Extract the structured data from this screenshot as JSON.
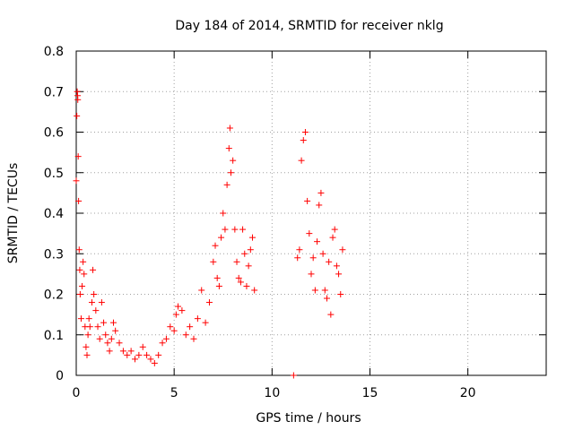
{
  "chart_data": {
    "type": "scatter",
    "title": "Day 184 of 2014, SRMTID for receiver nklg",
    "xlabel": "GPS time / hours",
    "ylabel": "SRMTID / TECUs",
    "xlim": [
      0,
      24
    ],
    "ylim": [
      0,
      0.8
    ],
    "xticks": [
      0,
      5,
      10,
      15,
      20
    ],
    "yticks": [
      0,
      0.1,
      0.2,
      0.3,
      0.4,
      0.5,
      0.6,
      0.7,
      0.8
    ],
    "grid": true,
    "marker": "+",
    "series": [
      {
        "name": "SRMTID",
        "color": "#ff0000",
        "points": [
          [
            0.0,
            0.48
          ],
          [
            0.03,
            0.64
          ],
          [
            0.05,
            0.7
          ],
          [
            0.07,
            0.69
          ],
          [
            0.08,
            0.68
          ],
          [
            0.1,
            0.54
          ],
          [
            0.12,
            0.43
          ],
          [
            0.15,
            0.31
          ],
          [
            0.18,
            0.26
          ],
          [
            0.2,
            0.2
          ],
          [
            0.25,
            0.14
          ],
          [
            0.3,
            0.22
          ],
          [
            0.35,
            0.28
          ],
          [
            0.4,
            0.25
          ],
          [
            0.45,
            0.12
          ],
          [
            0.5,
            0.07
          ],
          [
            0.55,
            0.05
          ],
          [
            0.6,
            0.1
          ],
          [
            0.65,
            0.14
          ],
          [
            0.7,
            0.12
          ],
          [
            0.8,
            0.18
          ],
          [
            0.85,
            0.26
          ],
          [
            0.9,
            0.2
          ],
          [
            1.0,
            0.16
          ],
          [
            1.1,
            0.12
          ],
          [
            1.2,
            0.09
          ],
          [
            1.3,
            0.18
          ],
          [
            1.4,
            0.13
          ],
          [
            1.5,
            0.1
          ],
          [
            1.6,
            0.08
          ],
          [
            1.7,
            0.06
          ],
          [
            1.8,
            0.09
          ],
          [
            1.9,
            0.13
          ],
          [
            2.0,
            0.11
          ],
          [
            2.2,
            0.08
          ],
          [
            2.4,
            0.06
          ],
          [
            2.6,
            0.05
          ],
          [
            2.8,
            0.06
          ],
          [
            3.0,
            0.04
          ],
          [
            3.2,
            0.05
          ],
          [
            3.4,
            0.07
          ],
          [
            3.6,
            0.05
          ],
          [
            3.8,
            0.04
          ],
          [
            4.0,
            0.03
          ],
          [
            4.2,
            0.05
          ],
          [
            4.4,
            0.08
          ],
          [
            4.6,
            0.09
          ],
          [
            4.8,
            0.12
          ],
          [
            5.0,
            0.11
          ],
          [
            5.1,
            0.15
          ],
          [
            5.2,
            0.17
          ],
          [
            5.4,
            0.16
          ],
          [
            5.6,
            0.1
          ],
          [
            5.8,
            0.12
          ],
          [
            6.0,
            0.09
          ],
          [
            6.2,
            0.14
          ],
          [
            6.4,
            0.21
          ],
          [
            6.6,
            0.13
          ],
          [
            6.8,
            0.18
          ],
          [
            7.0,
            0.28
          ],
          [
            7.1,
            0.32
          ],
          [
            7.2,
            0.24
          ],
          [
            7.3,
            0.22
          ],
          [
            7.4,
            0.34
          ],
          [
            7.5,
            0.4
          ],
          [
            7.6,
            0.36
          ],
          [
            7.7,
            0.47
          ],
          [
            7.8,
            0.56
          ],
          [
            7.85,
            0.61
          ],
          [
            7.9,
            0.5
          ],
          [
            8.0,
            0.53
          ],
          [
            8.1,
            0.36
          ],
          [
            8.2,
            0.28
          ],
          [
            8.3,
            0.24
          ],
          [
            8.4,
            0.23
          ],
          [
            8.5,
            0.36
          ],
          [
            8.6,
            0.3
          ],
          [
            8.7,
            0.22
          ],
          [
            8.8,
            0.27
          ],
          [
            8.9,
            0.31
          ],
          [
            9.0,
            0.34
          ],
          [
            9.1,
            0.21
          ],
          [
            11.1,
            0.0
          ],
          [
            11.3,
            0.29
          ],
          [
            11.4,
            0.31
          ],
          [
            11.5,
            0.53
          ],
          [
            11.6,
            0.58
          ],
          [
            11.7,
            0.6
          ],
          [
            11.8,
            0.43
          ],
          [
            11.9,
            0.35
          ],
          [
            12.0,
            0.25
          ],
          [
            12.1,
            0.29
          ],
          [
            12.2,
            0.21
          ],
          [
            12.3,
            0.33
          ],
          [
            12.4,
            0.42
          ],
          [
            12.5,
            0.45
          ],
          [
            12.6,
            0.3
          ],
          [
            12.7,
            0.21
          ],
          [
            12.8,
            0.19
          ],
          [
            12.9,
            0.28
          ],
          [
            13.0,
            0.15
          ],
          [
            13.1,
            0.34
          ],
          [
            13.2,
            0.36
          ],
          [
            13.3,
            0.27
          ],
          [
            13.4,
            0.25
          ],
          [
            13.5,
            0.2
          ],
          [
            13.6,
            0.31
          ]
        ]
      }
    ]
  }
}
